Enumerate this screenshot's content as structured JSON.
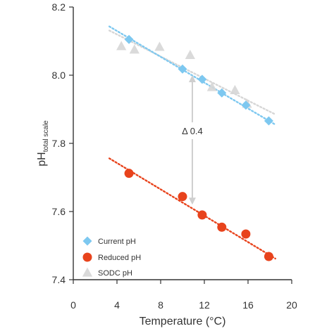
{
  "chart_data": {
    "type": "scatter",
    "xlabel": "Temperature (°C)",
    "ylabel_main": "pH",
    "ylabel_sub": "total scale",
    "xlim": [
      0,
      20
    ],
    "ylim": [
      7.4,
      8.2
    ],
    "x_ticks": [
      "0",
      "4",
      "8",
      "12",
      "16",
      "20"
    ],
    "y_ticks": [
      "7.4",
      "7.6",
      "7.8",
      "8.0",
      "8.2"
    ],
    "grid": false,
    "legend_position": "bottom-left",
    "series": [
      {
        "name": "Current pH",
        "marker": "diamond",
        "color": "#7dc8f0",
        "points": [
          [
            5.1,
            8.105
          ],
          [
            10.0,
            8.018
          ],
          [
            11.8,
            7.988
          ],
          [
            13.6,
            7.948
          ],
          [
            15.8,
            7.912
          ],
          [
            17.9,
            7.866
          ]
        ],
        "trend": [
          [
            3.3,
            8.143
          ],
          [
            18.5,
            7.855
          ]
        ]
      },
      {
        "name": "Reduced pH",
        "marker": "circle",
        "color": "#e8431c",
        "points": [
          [
            5.1,
            7.712
          ],
          [
            10.0,
            7.644
          ],
          [
            11.8,
            7.59
          ],
          [
            13.6,
            7.554
          ],
          [
            15.8,
            7.534
          ],
          [
            17.9,
            7.468
          ]
        ],
        "trend": [
          [
            3.3,
            7.756
          ],
          [
            18.5,
            7.462
          ]
        ]
      },
      {
        "name": "SODC pH",
        "marker": "triangle",
        "color": "#d6d6d6",
        "points": [
          [
            4.4,
            8.085
          ],
          [
            5.6,
            8.075
          ],
          [
            7.9,
            8.083
          ],
          [
            10.7,
            8.059
          ],
          [
            12.7,
            7.965
          ],
          [
            14.8,
            7.956
          ],
          [
            15.9,
            7.916
          ]
        ],
        "trend": [
          [
            3.3,
            8.131
          ],
          [
            18.5,
            7.885
          ]
        ]
      }
    ],
    "annotation": {
      "text": "Δ 0.4",
      "x": 10.9,
      "y_top": 8.0,
      "y_bottom": 7.62,
      "label_y": 7.837
    }
  }
}
